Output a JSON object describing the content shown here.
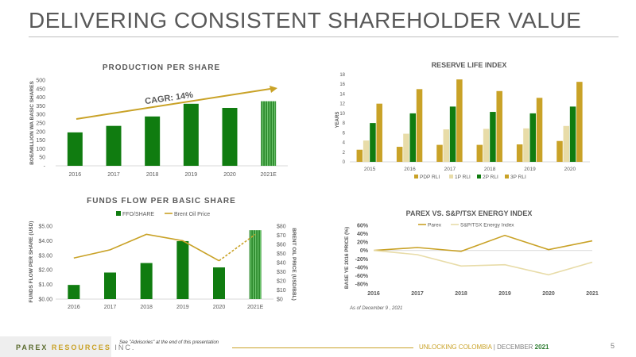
{
  "slide": {
    "title": "DELIVERING CONSISTENT SHAREHOLDER VALUE",
    "footer_logo_1": "PAREX",
    "footer_logo_2": "RESOURCES",
    "footer_logo_3": "INC.",
    "footer_note": "See \"Advisories\" at the end of this presentation",
    "footer_right_1": "UNLOCKING COLOMBIA",
    "footer_right_2": " | DECEMBER ",
    "footer_right_3": "2021",
    "page_number": "5",
    "as_of": "As of December 9 , 2021"
  },
  "colors": {
    "green": "#107c10",
    "green_hatched": "#4caf50",
    "gold": "#c9a227",
    "light_gold": "#e8dca8"
  },
  "chart_data": [
    {
      "type": "bar",
      "title": "PRODUCTION PER SHARE",
      "ylabel": "BOE/MILLION WA BASIC SHARES",
      "categories": [
        "2016",
        "2017",
        "2018",
        "2019",
        "2020",
        "2021E"
      ],
      "values": [
        195,
        233,
        288,
        362,
        338,
        377
      ],
      "ylim": [
        0,
        500
      ],
      "yticks": [
        "-",
        "50",
        "100",
        "150",
        "200",
        "250",
        "300",
        "350",
        "400",
        "450",
        "500"
      ],
      "annotation": "CAGR: 14%",
      "legend": "none"
    },
    {
      "type": "bar",
      "title": "RESERVE LIFE INDEX",
      "ylabel": "YEARS",
      "categories": [
        "2015",
        "2016",
        "2017",
        "2018",
        "2019",
        "2020"
      ],
      "ylim": [
        0,
        18
      ],
      "yticks": [
        "0",
        "2",
        "4",
        "6",
        "8",
        "10",
        "12",
        "14",
        "16",
        "18"
      ],
      "series": [
        {
          "name": "PDP RLI",
          "values": [
            2.5,
            3.1,
            3.5,
            3.5,
            3.6,
            4.3
          ]
        },
        {
          "name": "1P RLI",
          "values": [
            4.4,
            5.8,
            6.7,
            6.8,
            6.9,
            7.4
          ]
        },
        {
          "name": "2P RLI",
          "values": [
            8.0,
            10.0,
            11.4,
            10.3,
            10.0,
            11.4
          ]
        },
        {
          "name": "3P RLI",
          "values": [
            12.0,
            15.0,
            17.0,
            14.6,
            13.2,
            16.5
          ]
        }
      ],
      "legend": "bottom"
    },
    {
      "type": "bar",
      "title": "FUNDS FLOW PER BASIC SHARE",
      "ylabel": "FUNDS FLOW PER SHARE (USD)",
      "y2label": "BRENT OIL PRICE (USD/BBL)",
      "categories": [
        "2016",
        "2017",
        "2018",
        "2019",
        "2020",
        "2021E"
      ],
      "ylim": [
        0,
        5
      ],
      "yticks": [
        "$0.00",
        "$1.00",
        "$2.00",
        "$3.00",
        "$4.00",
        "$5.00"
      ],
      "y2lim": [
        0,
        80
      ],
      "y2ticks": [
        "$0",
        "$10",
        "$20",
        "$30",
        "$40",
        "$50",
        "$60",
        "$70",
        "$80"
      ],
      "series": [
        {
          "name": "FFO/SHARE",
          "values": [
            0.97,
            1.82,
            2.47,
            3.97,
            2.17,
            4.72
          ]
        },
        {
          "name": "Brent Oil Price",
          "values": [
            45,
            54,
            71,
            64,
            42,
            71
          ]
        }
      ],
      "legend": "top"
    },
    {
      "type": "line",
      "title": "PAREX VS. S&P/TSX ENERGY INDEX",
      "ylabel": "BASE YE 2016 PRICE (%)",
      "categories": [
        "2016",
        "2017",
        "2018",
        "2019",
        "2020",
        "2021"
      ],
      "ylim": [
        -80,
        60
      ],
      "yticks": [
        "-80%",
        "-60%",
        "-40%",
        "-20%",
        "0%",
        "20%",
        "40%",
        "60%"
      ],
      "series": [
        {
          "name": "Parex",
          "values": [
            0,
            7,
            -2,
            36,
            2,
            23
          ]
        },
        {
          "name": "S&P/TSX Energy Index",
          "values": [
            0,
            -10,
            -37,
            -34,
            -58,
            -28
          ]
        }
      ],
      "legend": "top"
    }
  ]
}
